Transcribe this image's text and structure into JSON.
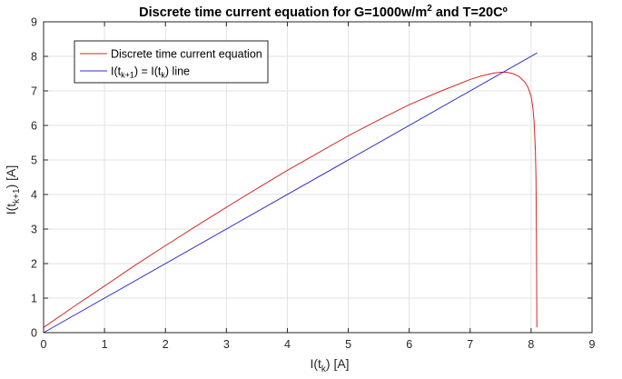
{
  "chart_data": {
    "type": "line",
    "title_prefix": "Discrete time current equation for G=1000w/m",
    "title_sup": "2",
    "title_suffix": " and T=20Cº",
    "xlabel": {
      "base": "I(t",
      "sub": "k",
      "end": ") [A]"
    },
    "ylabel": {
      "base": "I(t",
      "sub": "k+1",
      "end": ") [A]"
    },
    "xlim": [
      0,
      9
    ],
    "ylim": [
      0,
      9
    ],
    "xticks": [
      "0",
      "1",
      "2",
      "3",
      "4",
      "5",
      "6",
      "7",
      "8",
      "9"
    ],
    "yticks": [
      "0",
      "1",
      "2",
      "3",
      "4",
      "5",
      "6",
      "7",
      "8",
      "9"
    ],
    "grid": true,
    "legend_position": "top-left",
    "series": [
      {
        "name": "Discrete time current equation",
        "color": "#d62728",
        "x": [
          0,
          0.5,
          1,
          1.5,
          2,
          2.5,
          3,
          3.5,
          4,
          4.5,
          5,
          5.5,
          6,
          6.5,
          7,
          7.2,
          7.4,
          7.5,
          7.6,
          7.7,
          7.8,
          7.9,
          7.95,
          8.0,
          8.03,
          8.05,
          8.07,
          8.08,
          8.085,
          8.09,
          8.095
        ],
        "y": [
          0.15,
          0.76,
          1.35,
          1.95,
          2.52,
          3.08,
          3.63,
          4.17,
          4.7,
          5.2,
          5.7,
          6.16,
          6.6,
          6.98,
          7.33,
          7.44,
          7.52,
          7.54,
          7.54,
          7.5,
          7.42,
          7.25,
          7.1,
          6.85,
          6.5,
          6.1,
          5.3,
          4.5,
          3.5,
          2.0,
          0.15
        ]
      },
      {
        "name_base": "I(t",
        "name_sub1": "k+1",
        "name_mid": ") = I(t",
        "name_sub2": "k",
        "name_end": ") line",
        "color": "#3030c8",
        "x": [
          0,
          8.1
        ],
        "y": [
          0,
          8.1
        ]
      }
    ]
  }
}
